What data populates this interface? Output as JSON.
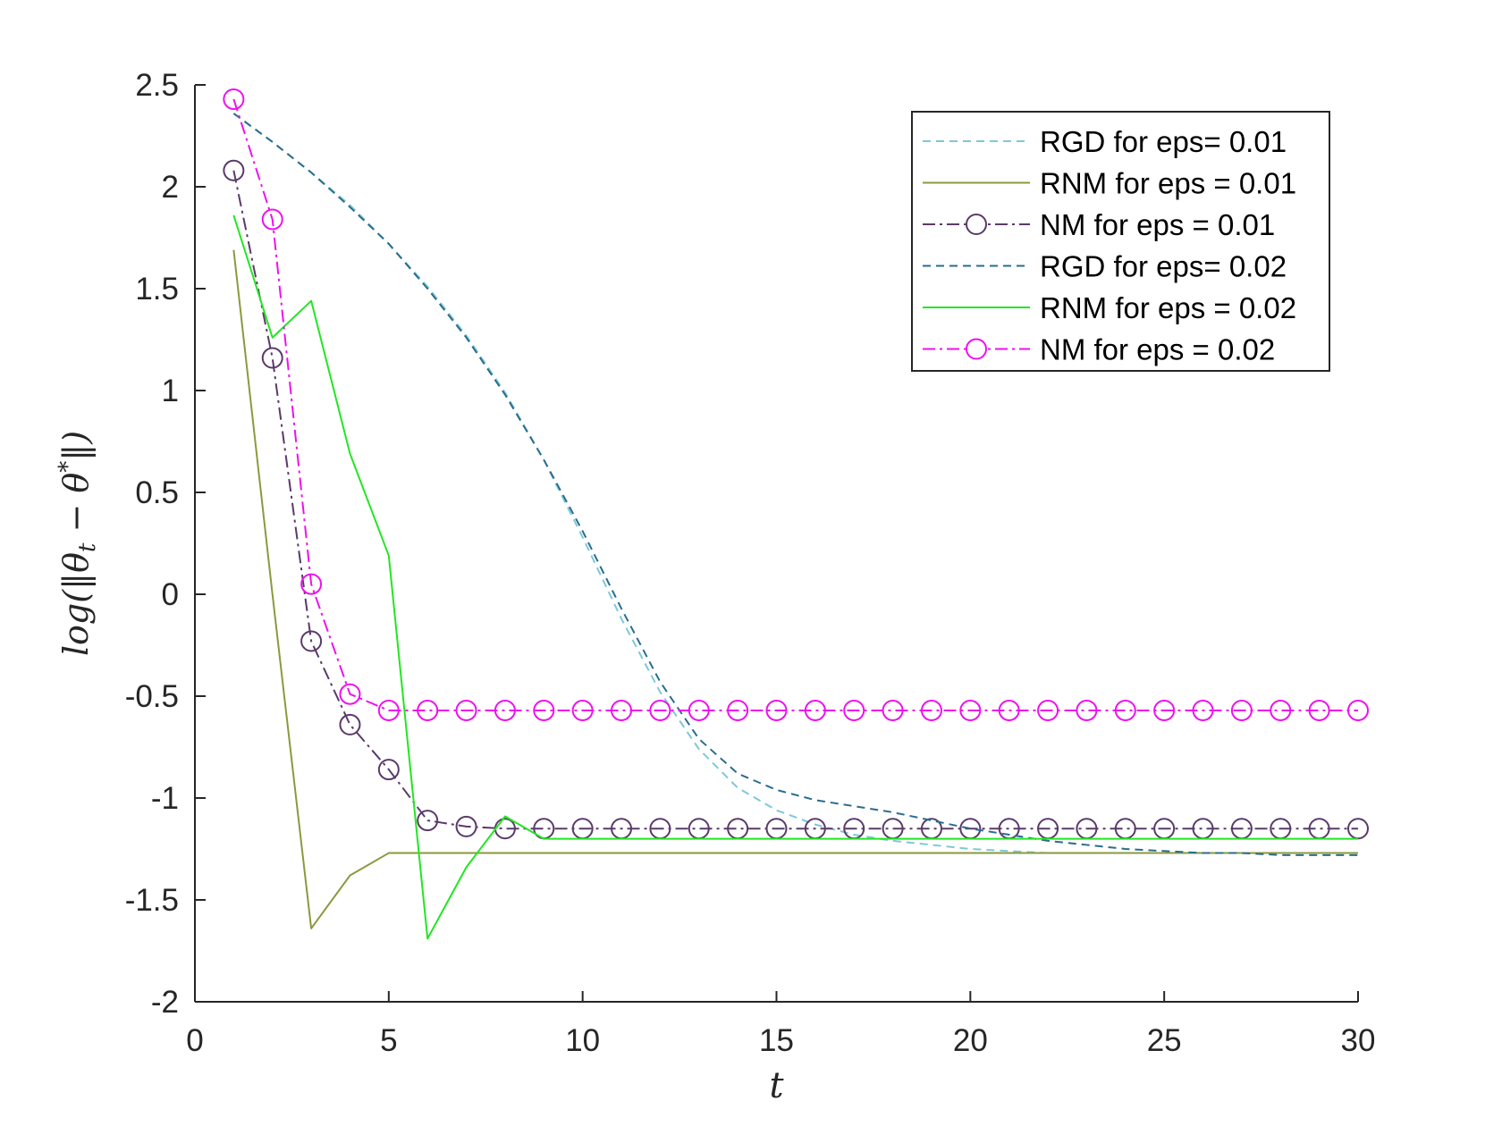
{
  "chart_data": {
    "type": "line",
    "title": "",
    "xlabel": "t",
    "ylabel": "log(||θ_t − θ*||)",
    "ylabel_parts": {
      "pre": "log(‖θ",
      "sub": "t",
      "mid": " − θ",
      "sup": "*",
      "post": "‖)"
    },
    "xlim": [
      0,
      30
    ],
    "ylim": [
      -2,
      2.5
    ],
    "xticks": [
      0,
      5,
      10,
      15,
      20,
      25,
      30
    ],
    "xtick_labels": [
      "0",
      "5",
      "10",
      "15",
      "20",
      "25",
      "30"
    ],
    "yticks": [
      2.5,
      2,
      1.5,
      1,
      0.5,
      0,
      -0.5,
      -1,
      -1.5,
      -2
    ],
    "ytick_labels": [
      "2.5",
      "2",
      "1.5",
      "1",
      "0.5",
      "0",
      "-0.5",
      "-1",
      "-1.5",
      "-2"
    ],
    "grid": false,
    "legend_position": "top-right",
    "x": [
      1,
      2,
      3,
      4,
      5,
      6,
      7,
      8,
      9,
      10,
      11,
      12,
      13,
      14,
      15,
      16,
      17,
      18,
      19,
      20,
      21,
      22,
      23,
      24,
      25,
      26,
      27,
      28,
      29,
      30
    ],
    "series": [
      {
        "name": "RGD for eps= 0.01",
        "color": "#7ec8d8",
        "style": "dashed",
        "marker": "none",
        "values": [
          2.36,
          2.22,
          2.07,
          1.91,
          1.72,
          1.51,
          1.27,
          0.99,
          0.66,
          0.28,
          -0.12,
          -0.48,
          -0.76,
          -0.95,
          -1.06,
          -1.13,
          -1.18,
          -1.21,
          -1.23,
          -1.25,
          -1.26,
          -1.27,
          -1.27,
          -1.27,
          -1.27,
          -1.27,
          -1.27,
          -1.27,
          -1.27,
          -1.27
        ]
      },
      {
        "name": "RNM for eps = 0.01",
        "color": "#8a9a3c",
        "style": "solid",
        "marker": "none",
        "values": [
          1.69,
          0.0,
          -1.64,
          -1.38,
          -1.27,
          -1.27,
          -1.27,
          -1.27,
          -1.27,
          -1.27,
          -1.27,
          -1.27,
          -1.27,
          -1.27,
          -1.27,
          -1.27,
          -1.27,
          -1.27,
          -1.27,
          -1.27,
          -1.27,
          -1.27,
          -1.27,
          -1.27,
          -1.27,
          -1.27,
          -1.27,
          -1.27,
          -1.27,
          -1.27
        ]
      },
      {
        "name": "NM for eps = 0.01",
        "color": "#5a3a6a",
        "style": "dashdot",
        "marker": "circle",
        "values": [
          2.08,
          1.16,
          -0.23,
          -0.64,
          -0.86,
          -1.11,
          -1.14,
          -1.15,
          -1.15,
          -1.15,
          -1.15,
          -1.15,
          -1.15,
          -1.15,
          -1.15,
          -1.15,
          -1.15,
          -1.15,
          -1.15,
          -1.15,
          -1.15,
          -1.15,
          -1.15,
          -1.15,
          -1.15,
          -1.15,
          -1.15,
          -1.15,
          -1.15,
          -1.15
        ]
      },
      {
        "name": "RGD for eps= 0.02",
        "color": "#2a6c8e",
        "style": "dashed",
        "marker": "none",
        "values": [
          2.36,
          2.22,
          2.07,
          1.9,
          1.72,
          1.5,
          1.26,
          0.98,
          0.66,
          0.31,
          -0.07,
          -0.43,
          -0.71,
          -0.88,
          -0.96,
          -1.01,
          -1.04,
          -1.07,
          -1.11,
          -1.15,
          -1.18,
          -1.21,
          -1.23,
          -1.25,
          -1.26,
          -1.27,
          -1.27,
          -1.28,
          -1.28,
          -1.28
        ]
      },
      {
        "name": "RNM for eps = 0.02",
        "color": "#22e622",
        "style": "solid",
        "marker": "none",
        "values": [
          1.86,
          1.26,
          1.44,
          0.69,
          0.19,
          -1.69,
          -1.34,
          -1.09,
          -1.2,
          -1.2,
          -1.2,
          -1.2,
          -1.2,
          -1.2,
          -1.2,
          -1.2,
          -1.2,
          -1.2,
          -1.2,
          -1.2,
          -1.2,
          -1.2,
          -1.2,
          -1.2,
          -1.2,
          -1.2,
          -1.2,
          -1.2,
          -1.2,
          -1.2
        ]
      },
      {
        "name": "NM for eps = 0.02",
        "color": "#ee11ee",
        "style": "dashdot",
        "marker": "circle",
        "values": [
          2.43,
          1.84,
          0.05,
          -0.49,
          -0.57,
          -0.57,
          -0.57,
          -0.57,
          -0.57,
          -0.57,
          -0.57,
          -0.57,
          -0.57,
          -0.57,
          -0.57,
          -0.57,
          -0.57,
          -0.57,
          -0.57,
          -0.57,
          -0.57,
          -0.57,
          -0.57,
          -0.57,
          -0.57,
          -0.57,
          -0.57,
          -0.57,
          -0.57,
          -0.57
        ]
      }
    ]
  }
}
